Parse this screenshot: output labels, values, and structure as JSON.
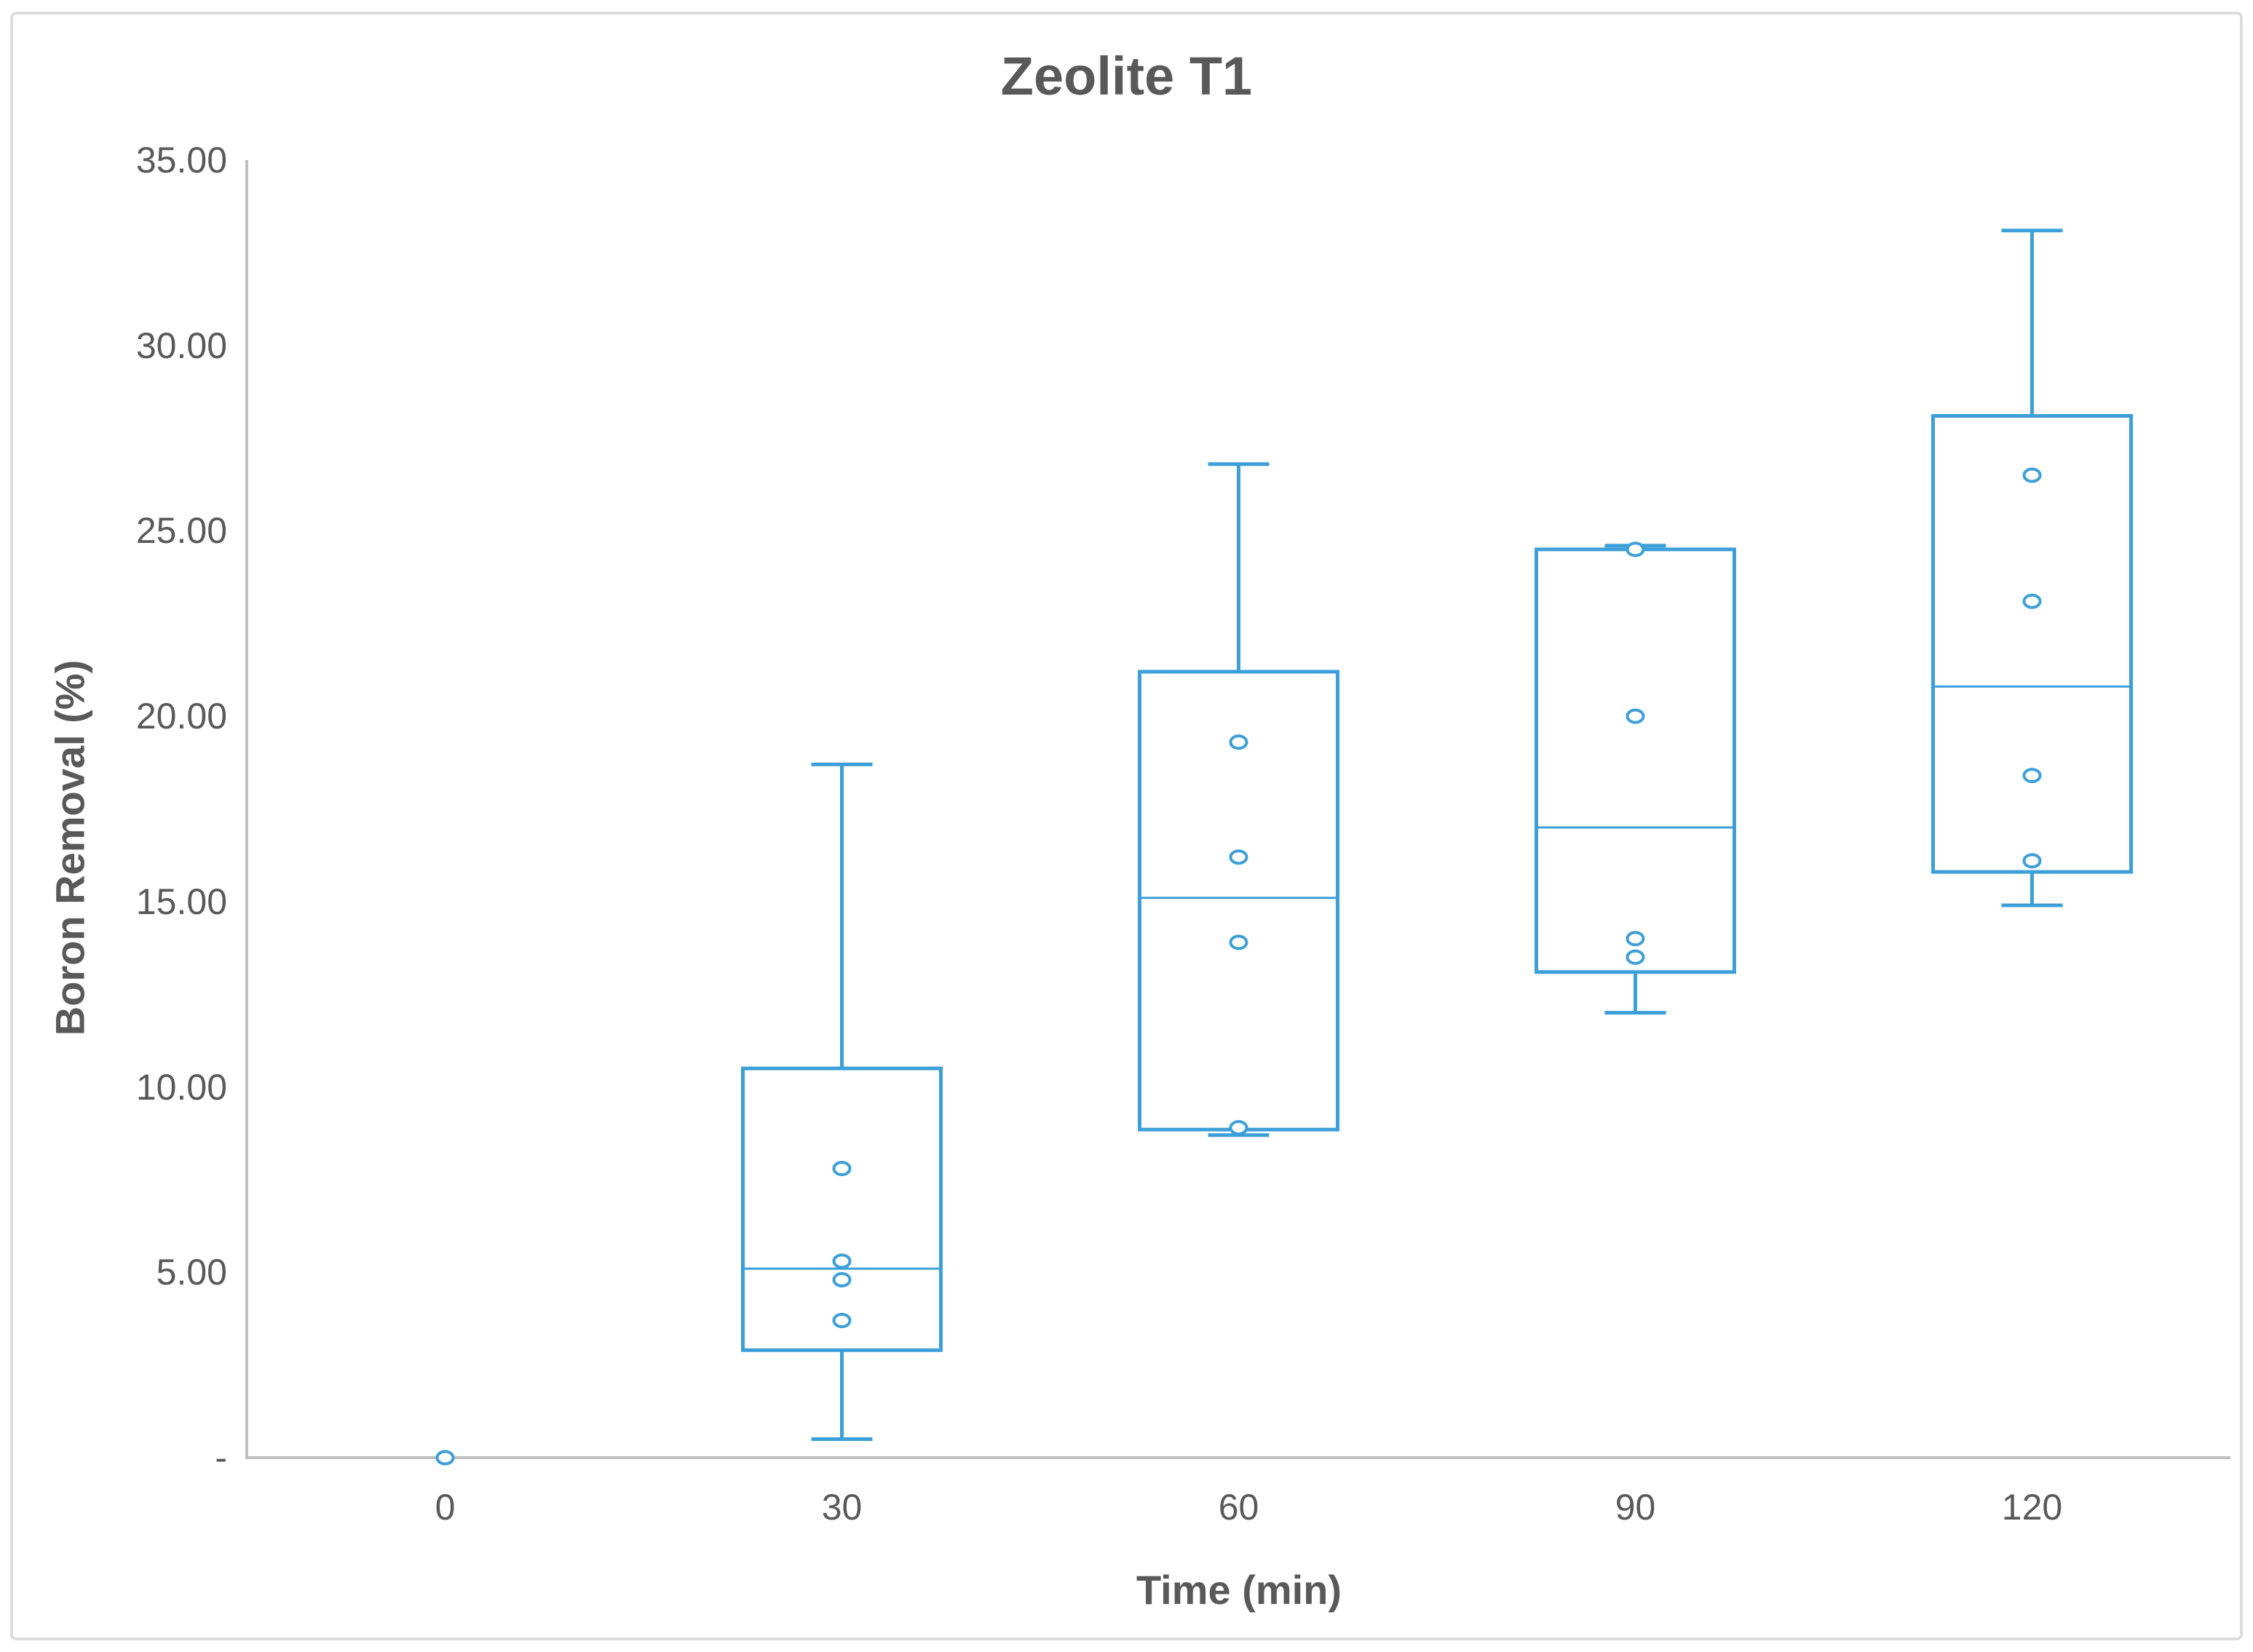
{
  "window": {
    "background": "#ffffff"
  },
  "colors": {
    "series_line": "#3d9fd9",
    "axis_line": "#bfbfbf",
    "text": "#595959",
    "frame_border": "#dcdcdc",
    "box_fill": "#ffffff"
  },
  "chart_data": {
    "type": "box",
    "title": "Zeolite T1",
    "xlabel": "Time (min)",
    "ylabel": "Boron Removal (%)",
    "ylim": [
      0,
      35
    ],
    "ytick_interval": 5,
    "grid": "off",
    "legend": "none",
    "yticks": [
      {
        "value": 35,
        "label": "35.00"
      },
      {
        "value": 30,
        "label": "30.00"
      },
      {
        "value": 25,
        "label": "25.00"
      },
      {
        "value": 20,
        "label": "20.00"
      },
      {
        "value": 15,
        "label": "15.00"
      },
      {
        "value": 10,
        "label": "10.00"
      },
      {
        "value": 5,
        "label": "5.00"
      },
      {
        "value": 0,
        "label": "-"
      }
    ],
    "categories": [
      "0",
      "30",
      "60",
      "90",
      "120"
    ],
    "boxes": [
      {
        "category": "0",
        "min": 0,
        "q1": 0,
        "median": 0,
        "q3": 0,
        "max": 0,
        "points": [
          0
        ]
      },
      {
        "category": "30",
        "min": 0.5,
        "q1": 2.9,
        "median": 5.1,
        "q3": 10.5,
        "max": 18.7,
        "points": [
          3.7,
          4.8,
          5.3,
          7.8
        ]
      },
      {
        "category": "60",
        "min": 8.7,
        "q1": 8.85,
        "median": 15.1,
        "q3": 21.2,
        "max": 26.8,
        "points": [
          8.9,
          13.9,
          16.2,
          19.3
        ]
      },
      {
        "category": "90",
        "min": 12.0,
        "q1": 13.1,
        "median": 17.0,
        "q3": 24.5,
        "max": 24.6,
        "points": [
          13.5,
          14.0,
          20.0,
          24.5
        ]
      },
      {
        "category": "120",
        "min": 14.9,
        "q1": 15.8,
        "median": 20.8,
        "q3": 28.1,
        "max": 33.1,
        "points": [
          16.1,
          18.4,
          23.1,
          26.5
        ]
      }
    ]
  }
}
